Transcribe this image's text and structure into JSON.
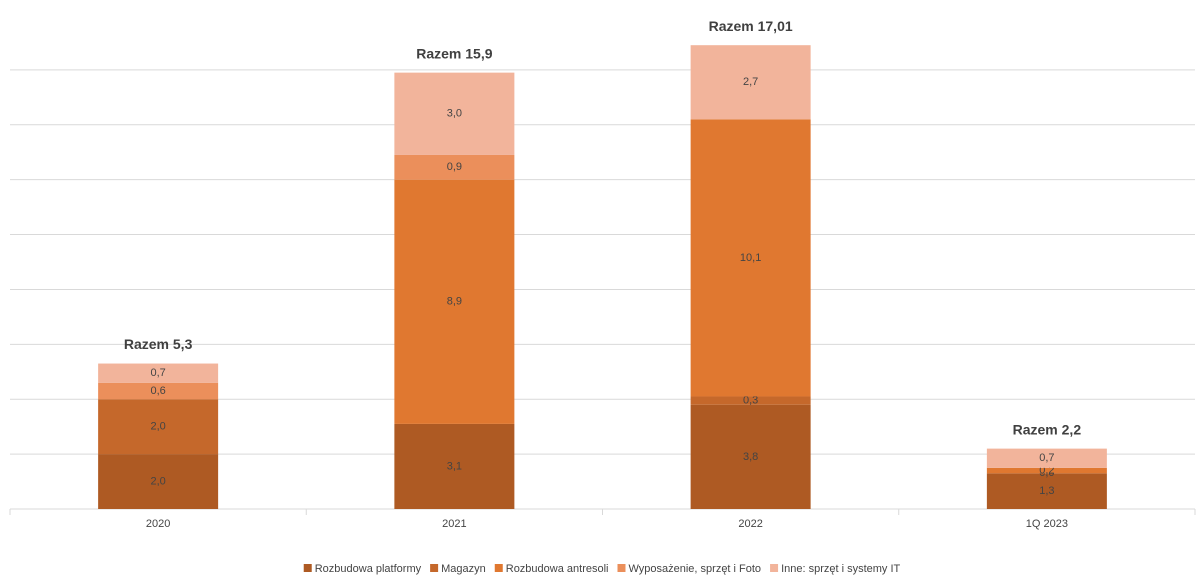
{
  "chart_data": {
    "type": "stacked_bar",
    "categories": [
      "2020",
      "2021",
      "2022",
      "1Q 2023"
    ],
    "series": [
      {
        "name": "Rozbudowa platformy",
        "color": "#ae5a23",
        "values": [
          2.0,
          3.1,
          3.8,
          1.3
        ],
        "value_labels": [
          "2,0",
          "3,1",
          "3,8",
          "1,3"
        ]
      },
      {
        "name": "Magazyn",
        "color": "#c5682b",
        "values": [
          2.0,
          null,
          0.3,
          0.0
        ],
        "value_labels": [
          "2,0",
          null,
          "0,3",
          "0,0"
        ]
      },
      {
        "name": "Rozbudowa antresoli",
        "color": "#e07830",
        "values": [
          null,
          8.9,
          10.1,
          0.2
        ],
        "value_labels": [
          null,
          "8,9",
          "10,1",
          "0,2"
        ]
      },
      {
        "name": "Wyposażenie, sprzęt i Foto",
        "color": "#eb8f5b",
        "values": [
          0.6,
          0.9,
          null,
          null
        ],
        "value_labels": [
          "0,6",
          "0,9",
          null,
          null
        ]
      },
      {
        "name": "Inne: sprzęt i systemy IT",
        "color": "#f2b49b",
        "values": [
          0.7,
          3.0,
          2.7,
          0.7
        ],
        "value_labels": [
          "0,7",
          "3,0",
          "2,7",
          "0,7"
        ]
      }
    ],
    "annotations": [
      "Razem 5,3",
      "Razem 15,9",
      "Razem 17,01",
      "Razem 2,2"
    ],
    "ylim": [
      0,
      18
    ],
    "yticks": [
      0,
      2,
      4,
      6,
      8,
      10,
      12,
      14,
      16
    ],
    "grid": true,
    "legend": "bottom"
  }
}
